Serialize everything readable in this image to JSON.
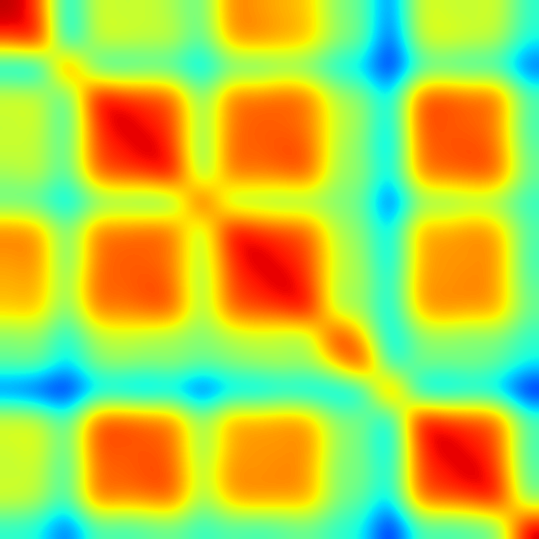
{
  "chart_data": {
    "type": "heatmap",
    "color": "jet",
    "tick_labels": false,
    "color_range": [
      0,
      1
    ],
    "cells": [
      [
        0.95,
        0.85,
        0.3,
        0.62,
        0.58,
        0.6,
        0.55,
        0.45,
        0.78,
        0.75,
        0.72,
        0.7,
        0.5,
        0.48,
        0.2,
        0.62,
        0.6,
        0.58,
        0.62,
        0.4
      ],
      [
        0.85,
        0.95,
        0.28,
        0.6,
        0.62,
        0.58,
        0.6,
        0.42,
        0.75,
        0.78,
        0.74,
        0.72,
        0.52,
        0.5,
        0.15,
        0.6,
        0.64,
        0.6,
        0.58,
        0.38
      ],
      [
        0.3,
        0.28,
        0.95,
        0.4,
        0.38,
        0.42,
        0.4,
        0.3,
        0.45,
        0.42,
        0.48,
        0.45,
        0.35,
        0.32,
        0.1,
        0.4,
        0.42,
        0.38,
        0.4,
        0.2
      ],
      [
        0.62,
        0.6,
        0.4,
        0.95,
        0.86,
        0.84,
        0.82,
        0.45,
        0.8,
        0.78,
        0.82,
        0.8,
        0.55,
        0.52,
        0.3,
        0.82,
        0.84,
        0.8,
        0.82,
        0.45
      ],
      [
        0.58,
        0.62,
        0.38,
        0.86,
        0.95,
        0.88,
        0.84,
        0.48,
        0.78,
        0.82,
        0.8,
        0.78,
        0.58,
        0.55,
        0.28,
        0.84,
        0.82,
        0.8,
        0.78,
        0.42
      ],
      [
        0.6,
        0.58,
        0.42,
        0.84,
        0.88,
        0.95,
        0.86,
        0.44,
        0.82,
        0.8,
        0.84,
        0.82,
        0.55,
        0.52,
        0.25,
        0.8,
        0.82,
        0.84,
        0.8,
        0.45
      ],
      [
        0.55,
        0.6,
        0.4,
        0.82,
        0.84,
        0.86,
        0.95,
        0.46,
        0.8,
        0.78,
        0.8,
        0.84,
        0.52,
        0.55,
        0.3,
        0.78,
        0.8,
        0.82,
        0.84,
        0.48
      ],
      [
        0.45,
        0.42,
        0.3,
        0.45,
        0.48,
        0.44,
        0.46,
        0.95,
        0.5,
        0.52,
        0.48,
        0.5,
        0.5,
        0.48,
        0.15,
        0.5,
        0.48,
        0.52,
        0.5,
        0.4
      ],
      [
        0.78,
        0.75,
        0.45,
        0.8,
        0.78,
        0.82,
        0.8,
        0.5,
        0.95,
        0.86,
        0.84,
        0.82,
        0.55,
        0.52,
        0.3,
        0.75,
        0.72,
        0.78,
        0.74,
        0.45
      ],
      [
        0.75,
        0.78,
        0.42,
        0.78,
        0.82,
        0.8,
        0.78,
        0.52,
        0.86,
        0.95,
        0.88,
        0.84,
        0.58,
        0.55,
        0.28,
        0.72,
        0.76,
        0.74,
        0.78,
        0.42
      ],
      [
        0.72,
        0.74,
        0.48,
        0.82,
        0.8,
        0.84,
        0.8,
        0.48,
        0.84,
        0.88,
        0.95,
        0.86,
        0.55,
        0.58,
        0.32,
        0.76,
        0.74,
        0.78,
        0.75,
        0.45
      ],
      [
        0.7,
        0.72,
        0.45,
        0.8,
        0.78,
        0.82,
        0.84,
        0.5,
        0.82,
        0.84,
        0.86,
        0.95,
        0.52,
        0.55,
        0.3,
        0.74,
        0.78,
        0.75,
        0.76,
        0.48
      ],
      [
        0.5,
        0.52,
        0.35,
        0.55,
        0.58,
        0.55,
        0.52,
        0.5,
        0.55,
        0.58,
        0.55,
        0.52,
        0.95,
        0.7,
        0.3,
        0.5,
        0.52,
        0.48,
        0.5,
        0.4
      ],
      [
        0.48,
        0.5,
        0.32,
        0.52,
        0.55,
        0.52,
        0.55,
        0.48,
        0.52,
        0.55,
        0.58,
        0.55,
        0.7,
        0.95,
        0.32,
        0.52,
        0.5,
        0.52,
        0.48,
        0.38
      ],
      [
        0.2,
        0.15,
        0.1,
        0.3,
        0.28,
        0.25,
        0.3,
        0.15,
        0.3,
        0.28,
        0.32,
        0.3,
        0.3,
        0.32,
        0.95,
        0.3,
        0.28,
        0.32,
        0.3,
        0.1
      ],
      [
        0.62,
        0.6,
        0.4,
        0.82,
        0.84,
        0.8,
        0.78,
        0.5,
        0.75,
        0.72,
        0.76,
        0.74,
        0.5,
        0.52,
        0.3,
        0.95,
        0.86,
        0.84,
        0.82,
        0.45
      ],
      [
        0.6,
        0.64,
        0.42,
        0.84,
        0.82,
        0.82,
        0.8,
        0.48,
        0.72,
        0.76,
        0.74,
        0.78,
        0.52,
        0.5,
        0.28,
        0.86,
        0.95,
        0.88,
        0.84,
        0.42
      ],
      [
        0.58,
        0.6,
        0.38,
        0.8,
        0.8,
        0.84,
        0.82,
        0.52,
        0.78,
        0.74,
        0.78,
        0.75,
        0.48,
        0.52,
        0.32,
        0.84,
        0.88,
        0.95,
        0.86,
        0.45
      ],
      [
        0.62,
        0.58,
        0.4,
        0.82,
        0.78,
        0.8,
        0.84,
        0.5,
        0.74,
        0.78,
        0.75,
        0.76,
        0.5,
        0.48,
        0.3,
        0.82,
        0.84,
        0.86,
        0.95,
        0.48
      ],
      [
        0.4,
        0.38,
        0.2,
        0.45,
        0.42,
        0.45,
        0.48,
        0.4,
        0.45,
        0.42,
        0.45,
        0.48,
        0.4,
        0.38,
        0.1,
        0.45,
        0.42,
        0.45,
        0.48,
        0.95
      ]
    ]
  }
}
